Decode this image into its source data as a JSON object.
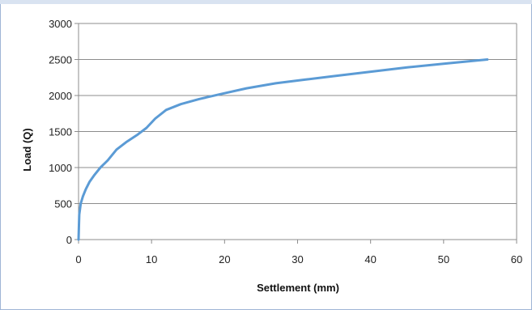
{
  "chart_data": {
    "type": "line",
    "title": "",
    "xlabel": "Settlement (mm)",
    "ylabel": "Load (Q)",
    "xlim": [
      0,
      60
    ],
    "ylim": [
      0,
      3000
    ],
    "xticks": [
      "0",
      "10",
      "20",
      "30",
      "40",
      "50",
      "60"
    ],
    "yticks": [
      "0",
      "500",
      "1000",
      "1500",
      "2000",
      "2500",
      "3000"
    ],
    "grid": "horizontal",
    "legend": "none",
    "line_color": "#5b9bd5",
    "series": [
      {
        "x": [
          0,
          0.05,
          0.1,
          0.3,
          0.6,
          1.0,
          1.5,
          2.2,
          3.0,
          4.0,
          5.2,
          6.5,
          8.0,
          9.3,
          10.5,
          12.0,
          14.0,
          16.5,
          19.5,
          23.0,
          27.0,
          31.0,
          35.0,
          40.0,
          45.0,
          50.0,
          56.0
        ],
        "y": [
          0,
          200,
          350,
          500,
          600,
          700,
          800,
          900,
          1000,
          1100,
          1250,
          1350,
          1450,
          1550,
          1680,
          1800,
          1880,
          1950,
          2020,
          2100,
          2170,
          2220,
          2270,
          2330,
          2390,
          2440,
          2500
        ]
      }
    ]
  }
}
